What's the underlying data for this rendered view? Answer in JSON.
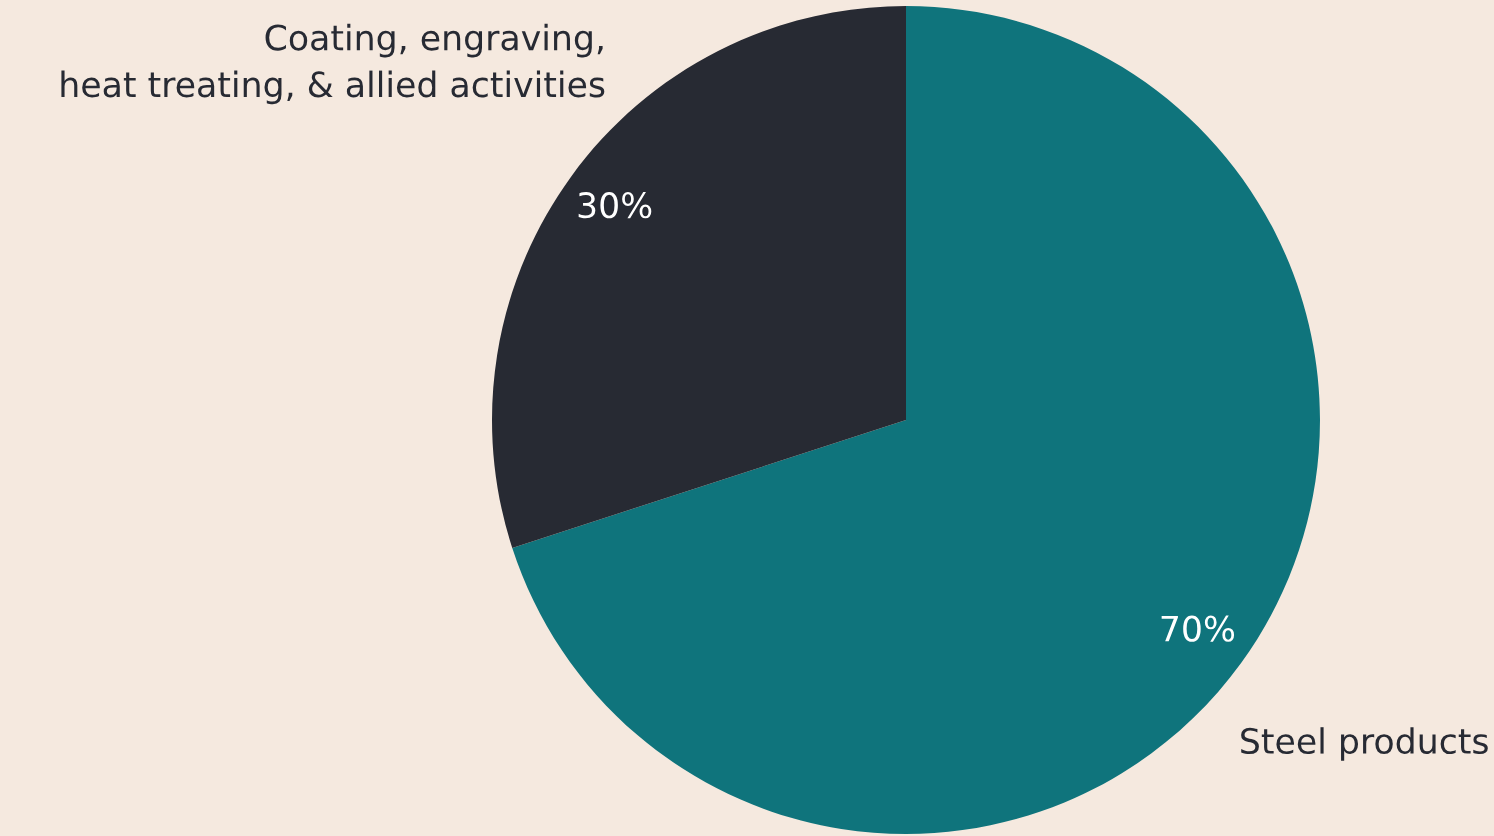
{
  "chart_data": {
    "type": "pie",
    "categories": [
      "Steel products",
      "Coating, engraving,\nheat treating, & allied activities"
    ],
    "values": [
      70,
      30
    ],
    "colors": [
      "#0f747c",
      "#272a33"
    ],
    "value_labels": [
      "70%",
      "30%"
    ]
  }
}
